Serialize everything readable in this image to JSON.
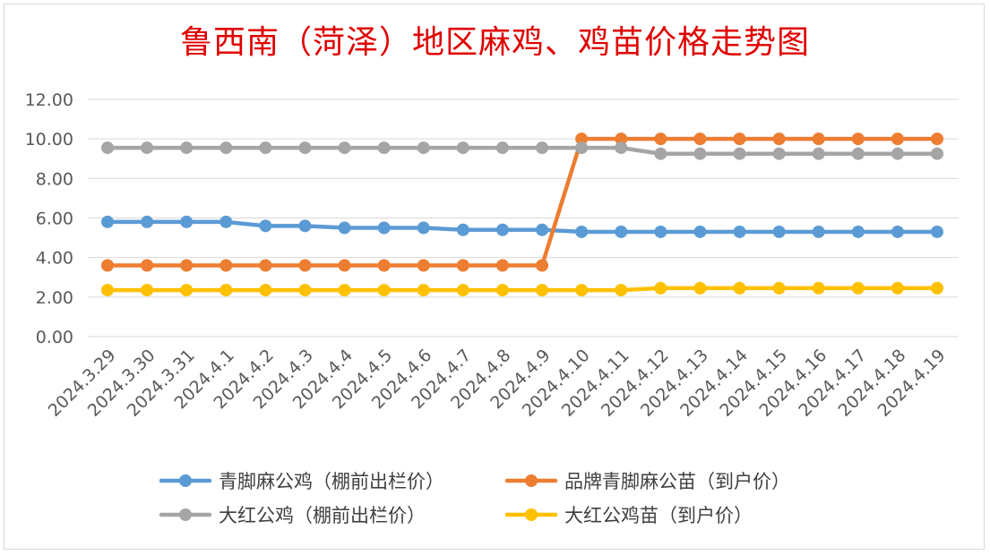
{
  "chart_data": {
    "type": "line",
    "title": "鲁西南（菏泽）地区麻鸡、鸡苗价格走势图",
    "xlabel": "",
    "ylabel": "",
    "categories": [
      "2024.3.29",
      "2024.3.30",
      "2024.3.31",
      "2024.4.1",
      "2024.4.2",
      "2024.4.3",
      "2024.4.4",
      "2024.4.5",
      "2024.4.6",
      "2024.4.7",
      "2024.4.8",
      "2024.4.9",
      "2024.4.10",
      "2024.4.11",
      "2024.4.12",
      "2024.4.13",
      "2024.4.14",
      "2024.4.15",
      "2024.4.16",
      "2024.4.17",
      "2024.4.18",
      "2024.4.19"
    ],
    "ylim": [
      0,
      12
    ],
    "yticks": [
      "0.00",
      "2.00",
      "4.00",
      "6.00",
      "8.00",
      "10.00",
      "12.00"
    ],
    "grid": true,
    "legend_position": "bottom",
    "series": [
      {
        "name": "青脚麻公鸡（棚前出栏价）",
        "color": "#5b9bd5",
        "values": [
          5.8,
          5.8,
          5.8,
          5.8,
          5.6,
          5.6,
          5.5,
          5.5,
          5.5,
          5.4,
          5.4,
          5.4,
          5.3,
          5.3,
          5.3,
          5.3,
          5.3,
          5.3,
          5.3,
          5.3,
          5.3,
          5.3
        ]
      },
      {
        "name": "品牌青脚麻公苗（到户价）",
        "color": "#ed7d31",
        "values": [
          3.6,
          3.6,
          3.6,
          3.6,
          3.6,
          3.6,
          3.6,
          3.6,
          3.6,
          3.6,
          3.6,
          3.6,
          10.0,
          10.0,
          10.0,
          10.0,
          10.0,
          10.0,
          10.0,
          10.0,
          10.0,
          10.0
        ]
      },
      {
        "name": "大红公鸡（棚前出栏价）",
        "color": "#a5a5a5",
        "values": [
          9.55,
          9.55,
          9.55,
          9.55,
          9.55,
          9.55,
          9.55,
          9.55,
          9.55,
          9.55,
          9.55,
          9.55,
          9.55,
          9.55,
          9.25,
          9.25,
          9.25,
          9.25,
          9.25,
          9.25,
          9.25,
          9.25
        ]
      },
      {
        "name": "大红公鸡苗（到户价）",
        "color": "#ffc000",
        "values": [
          2.35,
          2.35,
          2.35,
          2.35,
          2.35,
          2.35,
          2.35,
          2.35,
          2.35,
          2.35,
          2.35,
          2.35,
          2.35,
          2.35,
          2.45,
          2.45,
          2.45,
          2.45,
          2.45,
          2.45,
          2.45,
          2.45
        ]
      }
    ]
  }
}
